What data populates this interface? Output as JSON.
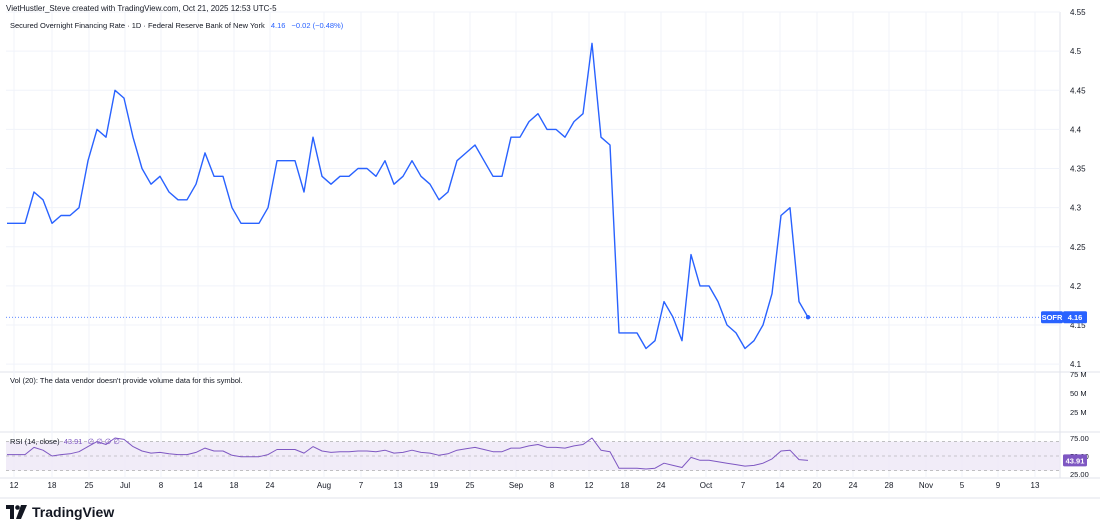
{
  "header": {
    "credit": "VietHustler_Steve created with TradingView.com, Oct 21, 2025 12:53 UTC-5"
  },
  "legend": {
    "title": "Secured Overnight Financing Rate · 1D · Federal Reserve Bank of New York",
    "last": "4.16",
    "change": "−0.02 (−0.48%)"
  },
  "volume": {
    "label": "Vol (20): The data vendor doesn't provide volume data for this symbol.",
    "axis": [
      "75 M",
      "50 M",
      "25 M"
    ]
  },
  "rsi_legend": {
    "label": "RSI (14, close)",
    "value": "43.91",
    "extras": "∅ ∅ ∅ ∅"
  },
  "price_tag": {
    "symbol": "SOFR",
    "value": "4.16"
  },
  "rsi_tag": {
    "value": "43.91"
  },
  "footer": {
    "brand": "TradingView"
  },
  "colors": {
    "line": "#2962ff",
    "rsi": "#7e57c2",
    "rsi_band": "#ede7f6",
    "grid": "#f0f3fa",
    "text": "#131722"
  },
  "chart_data": {
    "type": "line",
    "series": [
      {
        "name": "SOFR",
        "values": [
          4.28,
          4.28,
          4.28,
          4.32,
          4.31,
          4.28,
          4.29,
          4.29,
          4.3,
          4.36,
          4.4,
          4.39,
          4.45,
          4.44,
          4.39,
          4.35,
          4.33,
          4.34,
          4.32,
          4.31,
          4.31,
          4.33,
          4.37,
          4.34,
          4.34,
          4.3,
          4.28,
          4.28,
          4.28,
          4.3,
          4.36,
          4.36,
          4.36,
          4.32,
          4.39,
          4.34,
          4.33,
          4.34,
          4.34,
          4.35,
          4.35,
          4.34,
          4.36,
          4.33,
          4.34,
          4.36,
          4.34,
          4.33,
          4.31,
          4.32,
          4.36,
          4.37,
          4.38,
          4.36,
          4.34,
          4.34,
          4.39,
          4.39,
          4.41,
          4.42,
          4.4,
          4.4,
          4.39,
          4.41,
          4.42,
          4.51,
          4.39,
          4.38,
          4.14,
          4.14,
          4.14,
          4.12,
          4.13,
          4.18,
          4.16,
          4.13,
          4.24,
          4.2,
          4.2,
          4.18,
          4.15,
          4.14,
          4.12,
          4.13,
          4.15,
          4.19,
          4.29,
          4.3,
          4.18,
          4.16
        ]
      },
      {
        "name": "RSI",
        "values": [
          52,
          52,
          52,
          62,
          58,
          50,
          52,
          53,
          56,
          63,
          70,
          66,
          75,
          73,
          63,
          57,
          54,
          55,
          53,
          52,
          52,
          55,
          61,
          57,
          57,
          51,
          49,
          49,
          49,
          52,
          59,
          59,
          59,
          54,
          63,
          57,
          55,
          56,
          56,
          57,
          57,
          56,
          58,
          54,
          55,
          58,
          55,
          54,
          51,
          53,
          58,
          60,
          62,
          59,
          56,
          56,
          61,
          61,
          64,
          66,
          62,
          62,
          61,
          64,
          66,
          75,
          58,
          56,
          33,
          33,
          33,
          32,
          33,
          40,
          37,
          34,
          48,
          44,
          44,
          42,
          40,
          38,
          36,
          37,
          40,
          46,
          57,
          58,
          45,
          43.91
        ]
      }
    ],
    "x_ticks": [
      "12",
      "18",
      "25",
      "Jul",
      "8",
      "14",
      "18",
      "24",
      "Aug",
      "7",
      "13",
      "19",
      "25",
      "Sep",
      "8",
      "12",
      "18",
      "24",
      "Oct",
      "7",
      "14",
      "20",
      "24",
      "28",
      "Nov",
      "5",
      "9",
      "13"
    ],
    "y_ticks": [
      "4.55",
      "4.5",
      "4.45",
      "4.4",
      "4.35",
      "4.3",
      "4.25",
      "4.2",
      "4.15",
      "4.1"
    ],
    "ylim": [
      4.09,
      4.55
    ],
    "rsi_ticks": [
      "75.00",
      "50.00",
      "25.00"
    ],
    "rsi_ylim": [
      25,
      75
    ],
    "last_value": 4.16
  }
}
